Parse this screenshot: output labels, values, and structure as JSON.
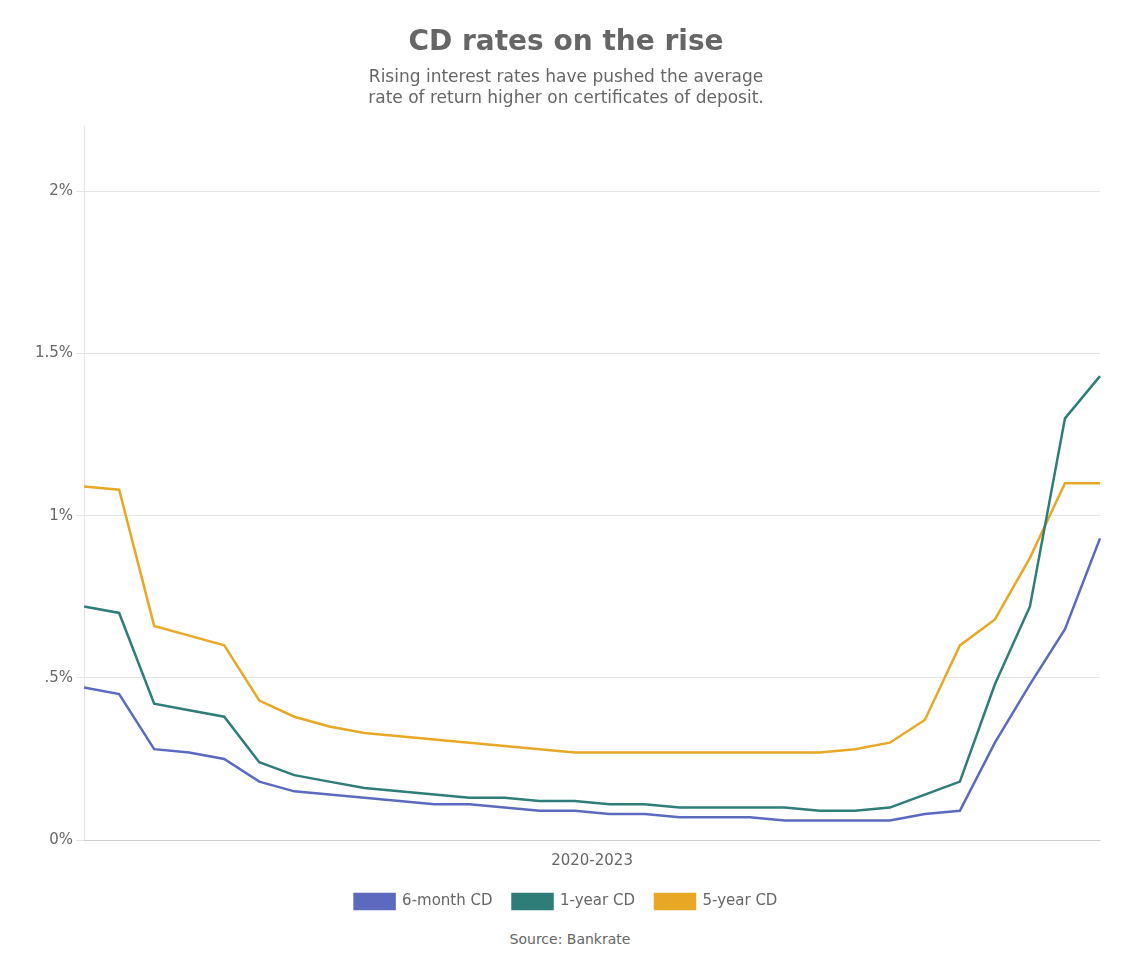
{
  "chart_data": {
    "type": "line",
    "title": "CD rates on the rise",
    "subtitle": "Rising interest rates have pushed the average\nrate of return higher on certificates of deposit.",
    "xlabel": "2020-2023",
    "source": "Source: Bankrate",
    "categories": [
      null,
      null,
      null,
      null,
      null,
      null,
      null,
      null,
      null,
      null,
      null,
      null,
      null,
      null,
      null,
      null,
      null,
      null,
      null,
      null,
      null,
      null,
      null,
      null,
      null,
      null,
      null,
      null,
      null,
      null
    ],
    "series": [
      {
        "name": "6-month CD",
        "color": "#5b6abf",
        "values": [
          0.47,
          0.45,
          0.28,
          0.27,
          0.25,
          0.18,
          0.15,
          0.14,
          0.13,
          0.12,
          0.11,
          0.11,
          0.1,
          0.09,
          0.09,
          0.08,
          0.08,
          0.07,
          0.07,
          0.07,
          0.06,
          0.06,
          0.06,
          0.06,
          0.08,
          0.09,
          0.3,
          0.48,
          0.65,
          0.93
        ]
      },
      {
        "name": "1-year CD",
        "color": "#2e7d78",
        "values": [
          0.72,
          0.7,
          0.42,
          0.4,
          0.38,
          0.24,
          0.2,
          0.18,
          0.16,
          0.15,
          0.14,
          0.13,
          0.13,
          0.12,
          0.12,
          0.11,
          0.11,
          0.1,
          0.1,
          0.1,
          0.1,
          0.09,
          0.09,
          0.1,
          0.14,
          0.18,
          0.48,
          0.72,
          1.3,
          1.43
        ]
      },
      {
        "name": "5-year CD",
        "color": "#e8a825",
        "values": [
          1.09,
          1.08,
          0.66,
          0.63,
          0.6,
          0.43,
          0.38,
          0.35,
          0.33,
          0.32,
          0.31,
          0.3,
          0.29,
          0.28,
          0.27,
          0.27,
          0.27,
          0.27,
          0.27,
          0.27,
          0.27,
          0.27,
          0.28,
          0.3,
          0.37,
          0.6,
          0.68,
          0.87,
          1.1,
          1.1
        ]
      }
    ],
    "ylim": [
      0,
      2.2
    ],
    "yticks": [
      {
        "value": 0.0,
        "label": "0%"
      },
      {
        "value": 0.5,
        "label": ".5%"
      },
      {
        "value": 1.0,
        "label": "1%"
      },
      {
        "value": 1.5,
        "label": "1.5%"
      },
      {
        "value": 2.0,
        "label": "2%"
      }
    ],
    "grid": true,
    "legend": "bottom",
    "tick_labels": "y"
  }
}
